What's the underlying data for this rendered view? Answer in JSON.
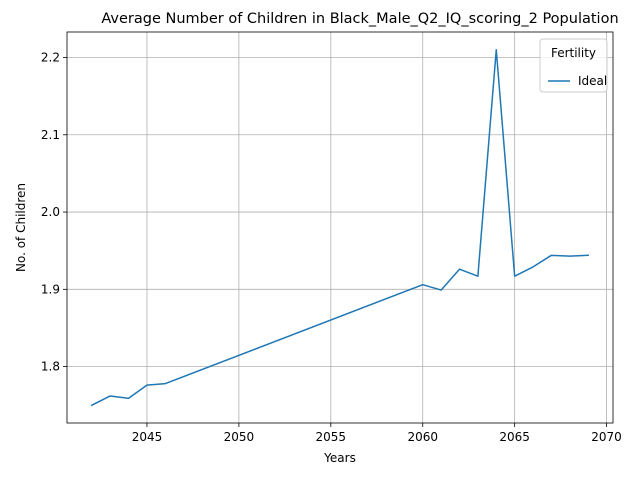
{
  "chart_data": {
    "type": "line",
    "title": "Average Number of Children in Black_Male_Q2_IQ_scoring_2 Population",
    "xlabel": "Years",
    "ylabel": "No. of Children",
    "xlim": [
      2040.65,
      2070.35
    ],
    "ylim": [
      1.727,
      2.233
    ],
    "xticks": [
      2045,
      2050,
      2055,
      2060,
      2065,
      2070
    ],
    "yticks": [
      1.8,
      1.9,
      2.0,
      2.1,
      2.2
    ],
    "xtick_labels": [
      "2045",
      "2050",
      "2055",
      "2060",
      "2065",
      "2070"
    ],
    "ytick_labels": [
      "1.8",
      "1.9",
      "2.0",
      "2.1",
      "2.2"
    ],
    "grid": true,
    "legend": {
      "title": "Fertility",
      "placement": "top-right"
    },
    "series": [
      {
        "name": "Ideal",
        "color": "#1f77b4",
        "x": [
          2042,
          2043,
          2044,
          2045,
          2046,
          2060,
          2061,
          2062,
          2063,
          2064,
          2065,
          2066,
          2067,
          2068,
          2069
        ],
        "y": [
          1.75,
          1.762,
          1.759,
          1.776,
          1.778,
          1.906,
          1.899,
          1.926,
          1.917,
          2.21,
          1.917,
          1.929,
          1.944,
          1.943,
          1.944
        ]
      }
    ]
  }
}
